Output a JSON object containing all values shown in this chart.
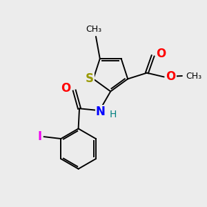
{
  "bg_color": "#ececec",
  "atom_colors": {
    "S": "#999900",
    "O": "#ff0000",
    "N": "#0000ff",
    "I": "#ee00ee",
    "H": "#008080",
    "C": "#000000"
  },
  "bond_color": "#000000",
  "figsize": [
    3.0,
    3.0
  ],
  "dpi": 100
}
